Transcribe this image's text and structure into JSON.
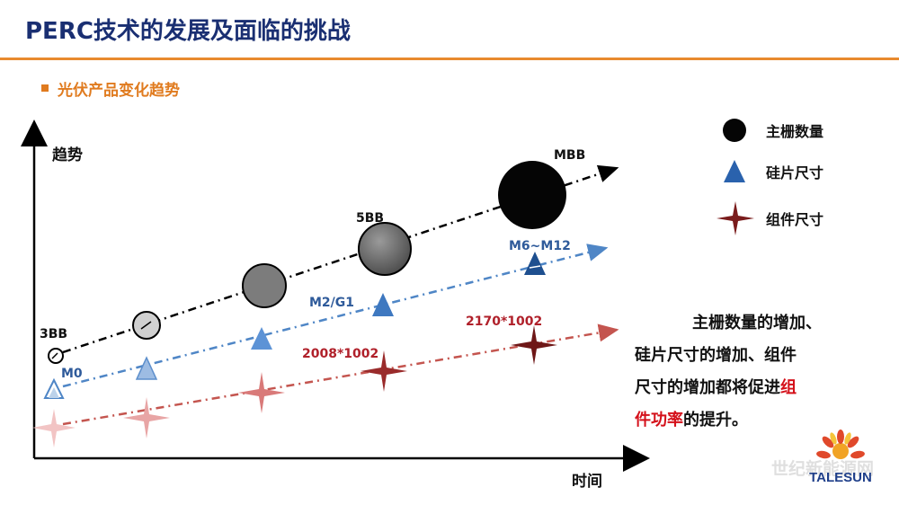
{
  "header": {
    "title": "PERC技术的发展及面临的挑战",
    "section": "光伏产品变化趋势"
  },
  "axes": {
    "y_label": "趋势",
    "x_label": "时间"
  },
  "legend": [
    {
      "label": "主栅数量",
      "icon": "black-circle-icon"
    },
    {
      "label": "硅片尺寸",
      "icon": "blue-triangle-icon"
    },
    {
      "label": "组件尺寸",
      "icon": "red-star-icon"
    }
  ],
  "labels": {
    "busbar_start": "3BB",
    "busbar_mid": "5BB",
    "busbar_end": "MBB",
    "wafer_start": "M0",
    "wafer_mid": "M2/G1",
    "wafer_end": "M6~M12",
    "module_mid": "2008*1002",
    "module_end": "2170*1002"
  },
  "note": {
    "line1": "主栅数量的增加、",
    "line2": "硅片尺寸的增加、组件",
    "line3_a": "尺寸的增加都将促进",
    "line3_red": "组",
    "line4_red": "件功率",
    "line4_b": "的提升。"
  },
  "watermark": "世纪新能源网",
  "logo_text": "TALESUN",
  "colors": {
    "title": "#1a2f72",
    "accent_orange": "#e07b1f",
    "busbar": "#000000",
    "wafer": "#3e78c0",
    "module": "#8b1a1a",
    "label_blue": "#2e5a9a",
    "label_red": "#b0202a"
  }
}
